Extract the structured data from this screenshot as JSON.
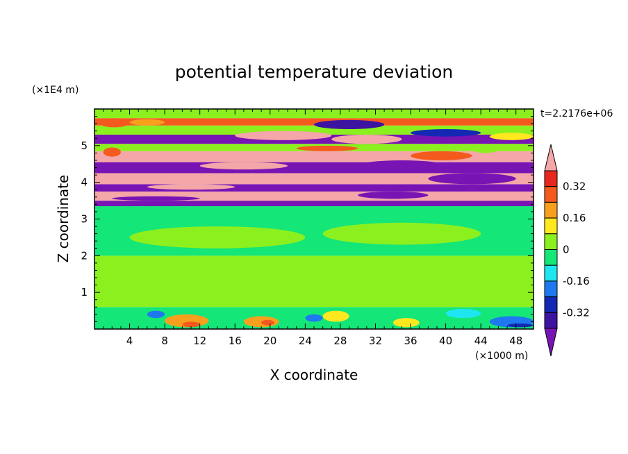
{
  "chart_data": {
    "type": "heatmap",
    "title": "potential temperature deviation",
    "xlabel": "X coordinate",
    "ylabel": "Z coordinate",
    "x_unit_label": "(×1000 m)",
    "y_unit_label": "(×1E4 m)",
    "time_label": "t=2.2176e+06",
    "xlim": [
      0,
      50
    ],
    "ylim": [
      0,
      6
    ],
    "x_ticks": [
      "4",
      "8",
      "12",
      "16",
      "20",
      "24",
      "28",
      "32",
      "36",
      "40",
      "44",
      "48"
    ],
    "y_ticks": [
      "1",
      "2",
      "3",
      "4",
      "5"
    ],
    "colorbar": {
      "labels": [
        "0.32",
        "0.16",
        "0",
        "-0.16",
        "-0.32"
      ],
      "bins": [
        {
          "lo": 0.4,
          "hi": null,
          "color": "#f4a6a8"
        },
        {
          "lo": 0.32,
          "hi": 0.4,
          "color": "#e8281e"
        },
        {
          "lo": 0.24,
          "hi": 0.32,
          "color": "#f45a1e"
        },
        {
          "lo": 0.16,
          "hi": 0.24,
          "color": "#f8a01e"
        },
        {
          "lo": 0.08,
          "hi": 0.16,
          "color": "#ffe81e"
        },
        {
          "lo": 0.0,
          "hi": 0.08,
          "color": "#8cf01e"
        },
        {
          "lo": -0.08,
          "hi": 0.0,
          "color": "#14e678"
        },
        {
          "lo": -0.16,
          "hi": -0.08,
          "color": "#1ee6f0"
        },
        {
          "lo": -0.24,
          "hi": -0.16,
          "color": "#1e78f0"
        },
        {
          "lo": -0.32,
          "hi": -0.24,
          "color": "#1428b4"
        },
        {
          "lo": -0.4,
          "hi": -0.32,
          "color": "#3c14a0"
        },
        {
          "lo": null,
          "hi": -0.4,
          "color": "#7814b4"
        }
      ]
    },
    "bands": [
      {
        "x0": 0,
        "x1": 50,
        "y0": 0,
        "y1": 0.6,
        "value": -0.05
      },
      {
        "x0": 0,
        "x1": 50,
        "y0": 0.6,
        "y1": 2.0,
        "value": 0.02
      },
      {
        "x0": 0,
        "x1": 50,
        "y0": 2.0,
        "y1": 3.35,
        "value": -0.03
      },
      {
        "x0": 0,
        "x1": 50,
        "y0": 3.35,
        "y1": 3.5,
        "value": -0.5
      },
      {
        "x0": 0,
        "x1": 50,
        "y0": 3.5,
        "y1": 3.75,
        "value": 0.5
      },
      {
        "x0": 0,
        "x1": 50,
        "y0": 3.75,
        "y1": 3.95,
        "value": -0.5
      },
      {
        "x0": 0,
        "x1": 50,
        "y0": 3.95,
        "y1": 4.25,
        "value": 0.5
      },
      {
        "x0": 0,
        "x1": 50,
        "y0": 4.25,
        "y1": 4.55,
        "value": -0.5
      },
      {
        "x0": 0,
        "x1": 50,
        "y0": 4.55,
        "y1": 4.85,
        "value": 0.5
      },
      {
        "x0": 0,
        "x1": 50,
        "y0": 4.85,
        "y1": 5.05,
        "value": 0.05
      },
      {
        "x0": 0,
        "x1": 50,
        "y0": 5.05,
        "y1": 5.3,
        "value": -0.5
      },
      {
        "x0": 0,
        "x1": 50,
        "y0": 5.3,
        "y1": 5.55,
        "value": 0.05
      },
      {
        "x0": 0,
        "x1": 50,
        "y0": 5.55,
        "y1": 5.75,
        "value": 0.25
      },
      {
        "x0": 0,
        "x1": 50,
        "y0": 5.75,
        "y1": 6.0,
        "value": 0.05
      }
    ],
    "blobs": [
      {
        "x0": 0.5,
        "x1": 4,
        "y0": 5.5,
        "y1": 5.75,
        "value": 0.3
      },
      {
        "x0": 4,
        "x1": 8,
        "y0": 5.55,
        "y1": 5.72,
        "value": 0.2
      },
      {
        "x0": 25,
        "x1": 33,
        "y0": 5.45,
        "y1": 5.7,
        "value": -0.35
      },
      {
        "x0": 16,
        "x1": 27,
        "y0": 5.15,
        "y1": 5.4,
        "value": 0.5
      },
      {
        "x0": 27,
        "x1": 35,
        "y0": 5.05,
        "y1": 5.3,
        "value": 0.5
      },
      {
        "x0": 36,
        "x1": 44,
        "y0": 5.25,
        "y1": 5.45,
        "value": -0.3
      },
      {
        "x0": 45,
        "x1": 50,
        "y0": 5.15,
        "y1": 5.35,
        "value": 0.1
      },
      {
        "x0": 1,
        "x1": 3,
        "y0": 4.7,
        "y1": 4.95,
        "value": 0.3
      },
      {
        "x0": 23,
        "x1": 30,
        "y0": 4.85,
        "y1": 5.0,
        "value": 0.3
      },
      {
        "x0": 36,
        "x1": 43,
        "y0": 4.6,
        "y1": 4.85,
        "value": 0.25
      },
      {
        "x0": 43,
        "x1": 46,
        "y0": 4.8,
        "y1": 5.0,
        "value": 0.0
      },
      {
        "x0": 30,
        "x1": 40,
        "y0": 4.3,
        "y1": 4.6,
        "value": -0.5
      },
      {
        "x0": 12,
        "x1": 22,
        "y0": 4.35,
        "y1": 4.55,
        "value": 0.5
      },
      {
        "x0": 38,
        "x1": 48,
        "y0": 3.95,
        "y1": 4.25,
        "value": -0.5
      },
      {
        "x0": 6,
        "x1": 16,
        "y0": 3.8,
        "y1": 3.95,
        "value": 0.5
      },
      {
        "x0": 30,
        "x1": 38,
        "y0": 3.55,
        "y1": 3.75,
        "value": -0.5
      },
      {
        "x0": 38,
        "x1": 50,
        "y0": 3.5,
        "y1": 3.7,
        "value": 0.5
      },
      {
        "x0": 2,
        "x1": 12,
        "y0": 3.5,
        "y1": 3.62,
        "value": -0.5
      },
      {
        "x0": 4,
        "x1": 24,
        "y0": 2.2,
        "y1": 2.8,
        "value": 0.02
      },
      {
        "x0": 26,
        "x1": 44,
        "y0": 2.3,
        "y1": 2.9,
        "value": 0.02
      },
      {
        "x0": 8,
        "x1": 13,
        "y0": 0.05,
        "y1": 0.4,
        "value": 0.22
      },
      {
        "x0": 10,
        "x1": 12,
        "y0": 0.05,
        "y1": 0.2,
        "value": 0.3
      },
      {
        "x0": 17,
        "x1": 21,
        "y0": 0.05,
        "y1": 0.35,
        "value": 0.22
      },
      {
        "x0": 19,
        "x1": 20.5,
        "y0": 0.1,
        "y1": 0.25,
        "value": 0.3
      },
      {
        "x0": 26,
        "x1": 29,
        "y0": 0.2,
        "y1": 0.5,
        "value": 0.12
      },
      {
        "x0": 34,
        "x1": 37,
        "y0": 0.05,
        "y1": 0.3,
        "value": 0.1
      },
      {
        "x0": 6,
        "x1": 8,
        "y0": 0.3,
        "y1": 0.5,
        "value": -0.18
      },
      {
        "x0": 24,
        "x1": 26,
        "y0": 0.2,
        "y1": 0.4,
        "value": -0.18
      },
      {
        "x0": 40,
        "x1": 44,
        "y0": 0.3,
        "y1": 0.55,
        "value": -0.12
      },
      {
        "x0": 45,
        "x1": 50,
        "y0": 0.05,
        "y1": 0.35,
        "value": -0.22
      },
      {
        "x0": 47,
        "x1": 50,
        "y0": 0.05,
        "y1": 0.15,
        "value": -0.3
      }
    ]
  }
}
